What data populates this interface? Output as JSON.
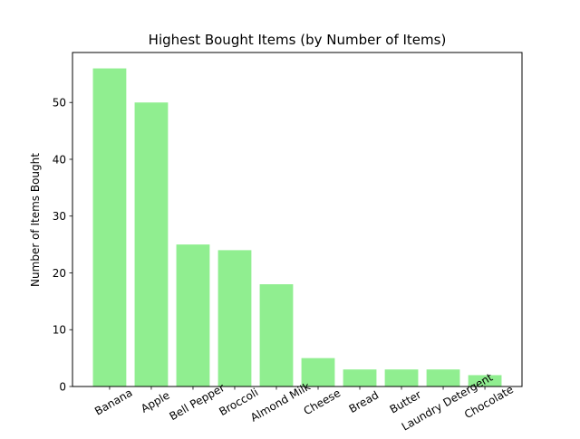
{
  "chart_data": {
    "type": "bar",
    "title": "Highest Bought Items (by Number of Items)",
    "xlabel": "",
    "ylabel": "Number of Items Bought",
    "categories": [
      "Banana",
      "Apple",
      "Bell Pepper",
      "Broccoli",
      "Almond Milk",
      "Cheese",
      "Bread",
      "Butter",
      "Laundry Detergent",
      "Chocolate"
    ],
    "values": [
      56,
      50,
      25,
      24,
      18,
      5,
      3,
      3,
      3,
      2
    ],
    "ylim": [
      0,
      58.8
    ],
    "yticks": [
      0,
      10,
      20,
      30,
      40,
      50
    ],
    "bar_color": "#90ee90",
    "grid": false,
    "legend": "none"
  }
}
